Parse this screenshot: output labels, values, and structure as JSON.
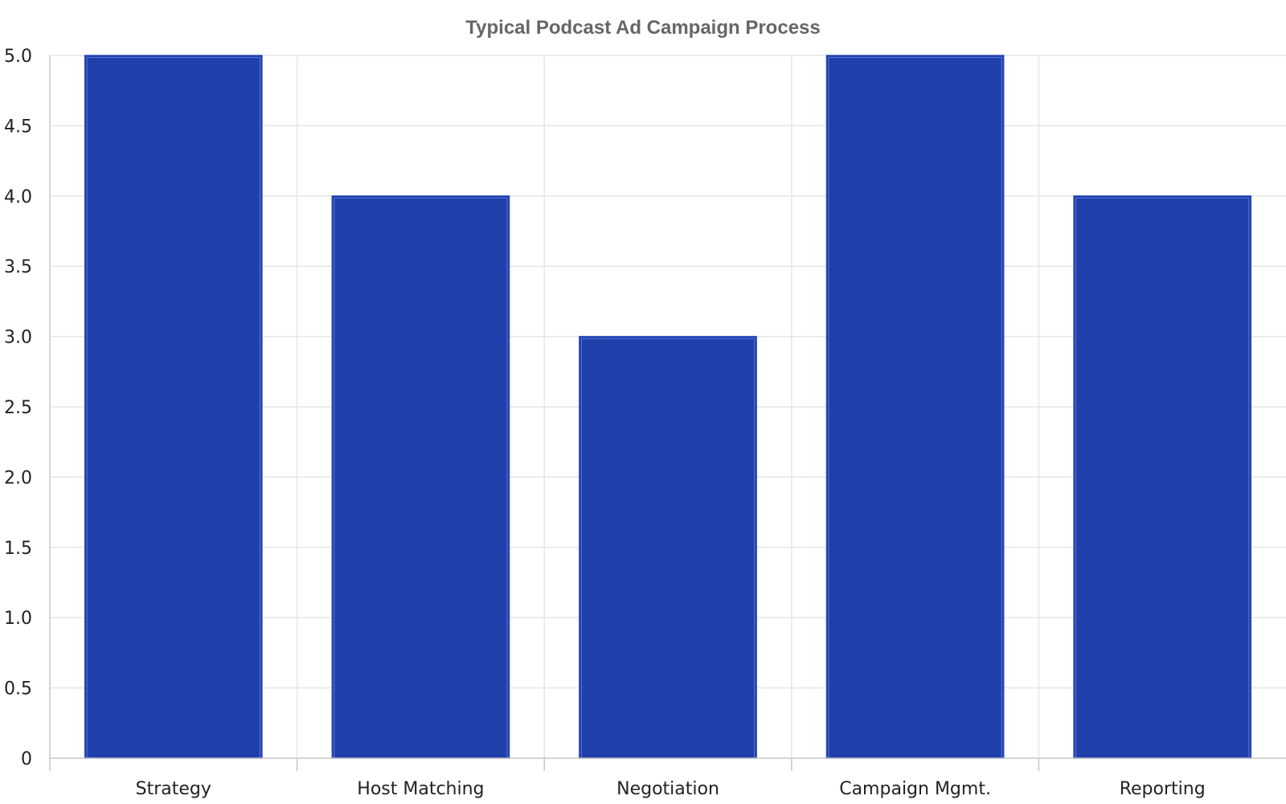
{
  "chart_data": {
    "type": "bar",
    "title": "Typical Podcast Ad Campaign Process",
    "xlabel": "",
    "ylabel": "",
    "categories": [
      "Strategy",
      "Host Matching",
      "Negotiation",
      "Campaign Mgmt.",
      "Reporting"
    ],
    "values": [
      5,
      4,
      3,
      5,
      4
    ],
    "ylim": [
      0,
      5
    ],
    "yticks": [
      "0",
      "0.5",
      "1.0",
      "1.5",
      "2.0",
      "2.5",
      "3.0",
      "3.5",
      "4.0",
      "4.5",
      "5.0"
    ],
    "grid": true,
    "legend": "none",
    "colors": {
      "bar": "#1f3faa",
      "bar_outline": "#2a49b8",
      "title": "#666666",
      "grid": "#e6e6e6"
    }
  }
}
